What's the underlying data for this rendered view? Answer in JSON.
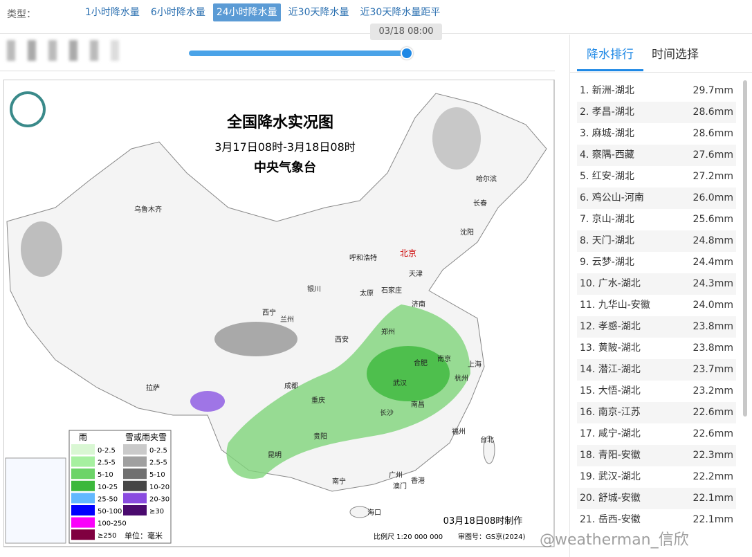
{
  "toolbar": {
    "label": "类型：",
    "tabs": [
      "1小时降水量",
      "6小时降水量",
      "24小时降水量",
      "近30天降水量",
      "近30天降水量距平"
    ],
    "active_tab": 2,
    "slider_time": "03/18 08:00"
  },
  "map": {
    "title": "全国降水实况图",
    "subtitle": "3月17日08时-3月18日08时",
    "agency": "中央气象台",
    "cities": [
      "乌鲁木齐",
      "哈尔滨",
      "长春",
      "沈阳",
      "呼和浩特",
      "北京",
      "天津",
      "石家庄",
      "太原",
      "银川",
      "济南",
      "西宁",
      "兰州",
      "郑州",
      "西安",
      "合肥",
      "南京",
      "上海",
      "武汉",
      "杭州",
      "成都",
      "拉萨",
      "重庆",
      "南昌",
      "长沙",
      "福州",
      "台北",
      "贵阳",
      "昆明",
      "广州",
      "南宁",
      "澳门",
      "香港",
      "海口"
    ],
    "legend": {
      "rain_title": "雨",
      "rain": [
        "0-2.5",
        "2.5-5",
        "5-10",
        "10-25",
        "25-50",
        "50-100",
        "100-250",
        "≥250"
      ],
      "snow_title": "雪或雨夹雪",
      "snow": [
        "0-2.5",
        "2.5-5",
        "5-10",
        "10-20",
        "20-30",
        "≥30"
      ],
      "unit": "单位：毫米"
    },
    "made": "03月18日08时制作",
    "scale": "比例尺 1:20 000 000",
    "approval": "审图号：GS京(2024)"
  },
  "panel": {
    "tabs": [
      "降水排行",
      "时间选择"
    ],
    "ranking": [
      [
        "1. 新洲-湖北",
        "29.7mm"
      ],
      [
        "2. 孝昌-湖北",
        "28.6mm"
      ],
      [
        "3. 麻城-湖北",
        "28.6mm"
      ],
      [
        "4. 察隅-西藏",
        "27.6mm"
      ],
      [
        "5. 红安-湖北",
        "27.2mm"
      ],
      [
        "6. 鸡公山-河南",
        "26.0mm"
      ],
      [
        "7. 京山-湖北",
        "25.6mm"
      ],
      [
        "8. 天门-湖北",
        "24.8mm"
      ],
      [
        "9. 云梦-湖北",
        "24.4mm"
      ],
      [
        "10. 广水-湖北",
        "24.3mm"
      ],
      [
        "11. 九华山-安徽",
        "24.0mm"
      ],
      [
        "12. 孝感-湖北",
        "23.8mm"
      ],
      [
        "13. 黄陂-湖北",
        "23.8mm"
      ],
      [
        "14. 潜江-湖北",
        "23.7mm"
      ],
      [
        "15. 大悟-湖北",
        "23.2mm"
      ],
      [
        "16. 南京-江苏",
        "22.6mm"
      ],
      [
        "17. 咸宁-湖北",
        "22.6mm"
      ],
      [
        "18. 青阳-安徽",
        "22.3mm"
      ],
      [
        "19. 武汉-湖北",
        "22.2mm"
      ],
      [
        "20. 舒城-安徽",
        "22.1mm"
      ],
      [
        "21. 岳西-安徽",
        "22.1mm"
      ]
    ]
  },
  "watermark": "@weatherman_信欣"
}
